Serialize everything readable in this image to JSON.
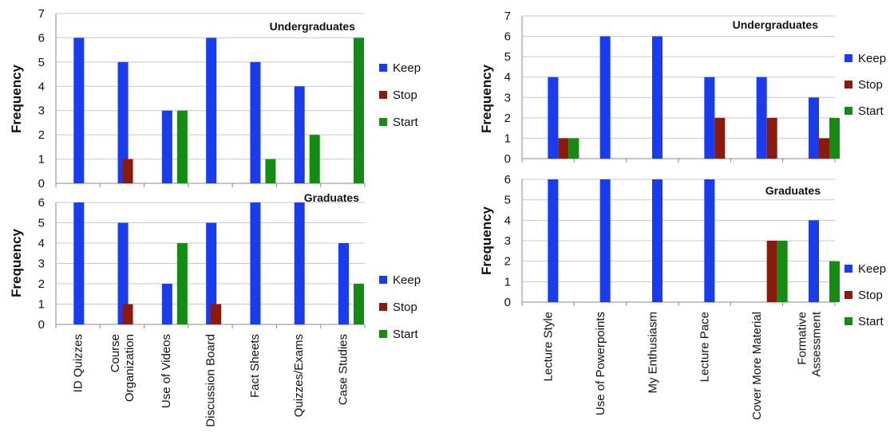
{
  "colors": {
    "keep": "#1a3cf0",
    "stop": "#8b1a0c",
    "start": "#148c14",
    "grid": "#c8c8c8",
    "axis": "#8a8a8a"
  },
  "chart_data": [
    {
      "type": "bar",
      "ylabel": "Frequency",
      "legend": [
        "Keep",
        "Stop",
        "Start"
      ],
      "categories": [
        "ID Quizzes",
        "Course Organization",
        "Use of Videos",
        "Discussion Board",
        "Fact Sheets",
        "Quizzes/Exams",
        "Case Studies"
      ],
      "category_lines": [
        [
          "ID Quizzes"
        ],
        [
          "Course",
          "Organization"
        ],
        [
          "Use of Videos"
        ],
        [
          "Discussion Board"
        ],
        [
          "Fact Sheets"
        ],
        [
          "Quizzes/Exams"
        ],
        [
          "Case Studies"
        ]
      ],
      "panels": [
        {
          "title": "Undergraduates",
          "ylim": [
            0,
            7
          ],
          "yticks": [
            0,
            1,
            2,
            3,
            4,
            5,
            6,
            7
          ],
          "series": [
            {
              "name": "Keep",
              "values": [
                6,
                5,
                3,
                6,
                5,
                4,
                0
              ]
            },
            {
              "name": "Stop",
              "values": [
                0,
                1,
                0,
                0,
                0,
                0,
                0
              ]
            },
            {
              "name": "Start",
              "values": [
                0,
                0,
                3,
                0,
                1,
                2,
                6
              ]
            }
          ]
        },
        {
          "title": "Graduates",
          "ylim": [
            0,
            6
          ],
          "yticks": [
            0,
            1,
            2,
            3,
            4,
            5,
            6
          ],
          "series": [
            {
              "name": "Keep",
              "values": [
                6,
                5,
                2,
                5,
                6,
                6,
                4
              ]
            },
            {
              "name": "Stop",
              "values": [
                0,
                1,
                0,
                1,
                0,
                0,
                0
              ]
            },
            {
              "name": "Start",
              "values": [
                0,
                0,
                4,
                0,
                0,
                0,
                2
              ]
            }
          ]
        }
      ]
    },
    {
      "type": "bar",
      "ylabel": "Frequency",
      "legend": [
        "Keep",
        "Stop",
        "Start"
      ],
      "categories": [
        "Lecture Style",
        "Use of Powerpoints",
        "My Enthusiasm",
        "Lecture Pace",
        "Cover More Material",
        "Formative Assessment"
      ],
      "category_lines": [
        [
          "Lecture Style"
        ],
        [
          "Use of Powerpoints"
        ],
        [
          "My Enthusiasm"
        ],
        [
          "Lecture Pace"
        ],
        [
          "Cover More Material"
        ],
        [
          "Formative",
          "Assessment"
        ]
      ],
      "panels": [
        {
          "title": "Undergraduates",
          "ylim": [
            0,
            7
          ],
          "yticks": [
            0,
            1,
            2,
            3,
            4,
            5,
            6,
            7
          ],
          "series": [
            {
              "name": "Keep",
              "values": [
                4,
                6,
                6,
                4,
                4,
                3
              ]
            },
            {
              "name": "Stop",
              "values": [
                1,
                0,
                0,
                2,
                2,
                1
              ]
            },
            {
              "name": "Start",
              "values": [
                1,
                0,
                0,
                0,
                0,
                2
              ]
            }
          ]
        },
        {
          "title": "Graduates",
          "ylim": [
            0,
            6
          ],
          "yticks": [
            0,
            1,
            2,
            3,
            4,
            5,
            6
          ],
          "series": [
            {
              "name": "Keep",
              "values": [
                6,
                6,
                6,
                6,
                0,
                4
              ]
            },
            {
              "name": "Stop",
              "values": [
                0,
                0,
                0,
                0,
                3,
                0
              ]
            },
            {
              "name": "Start",
              "values": [
                0,
                0,
                0,
                0,
                3,
                2
              ]
            }
          ]
        }
      ]
    }
  ]
}
